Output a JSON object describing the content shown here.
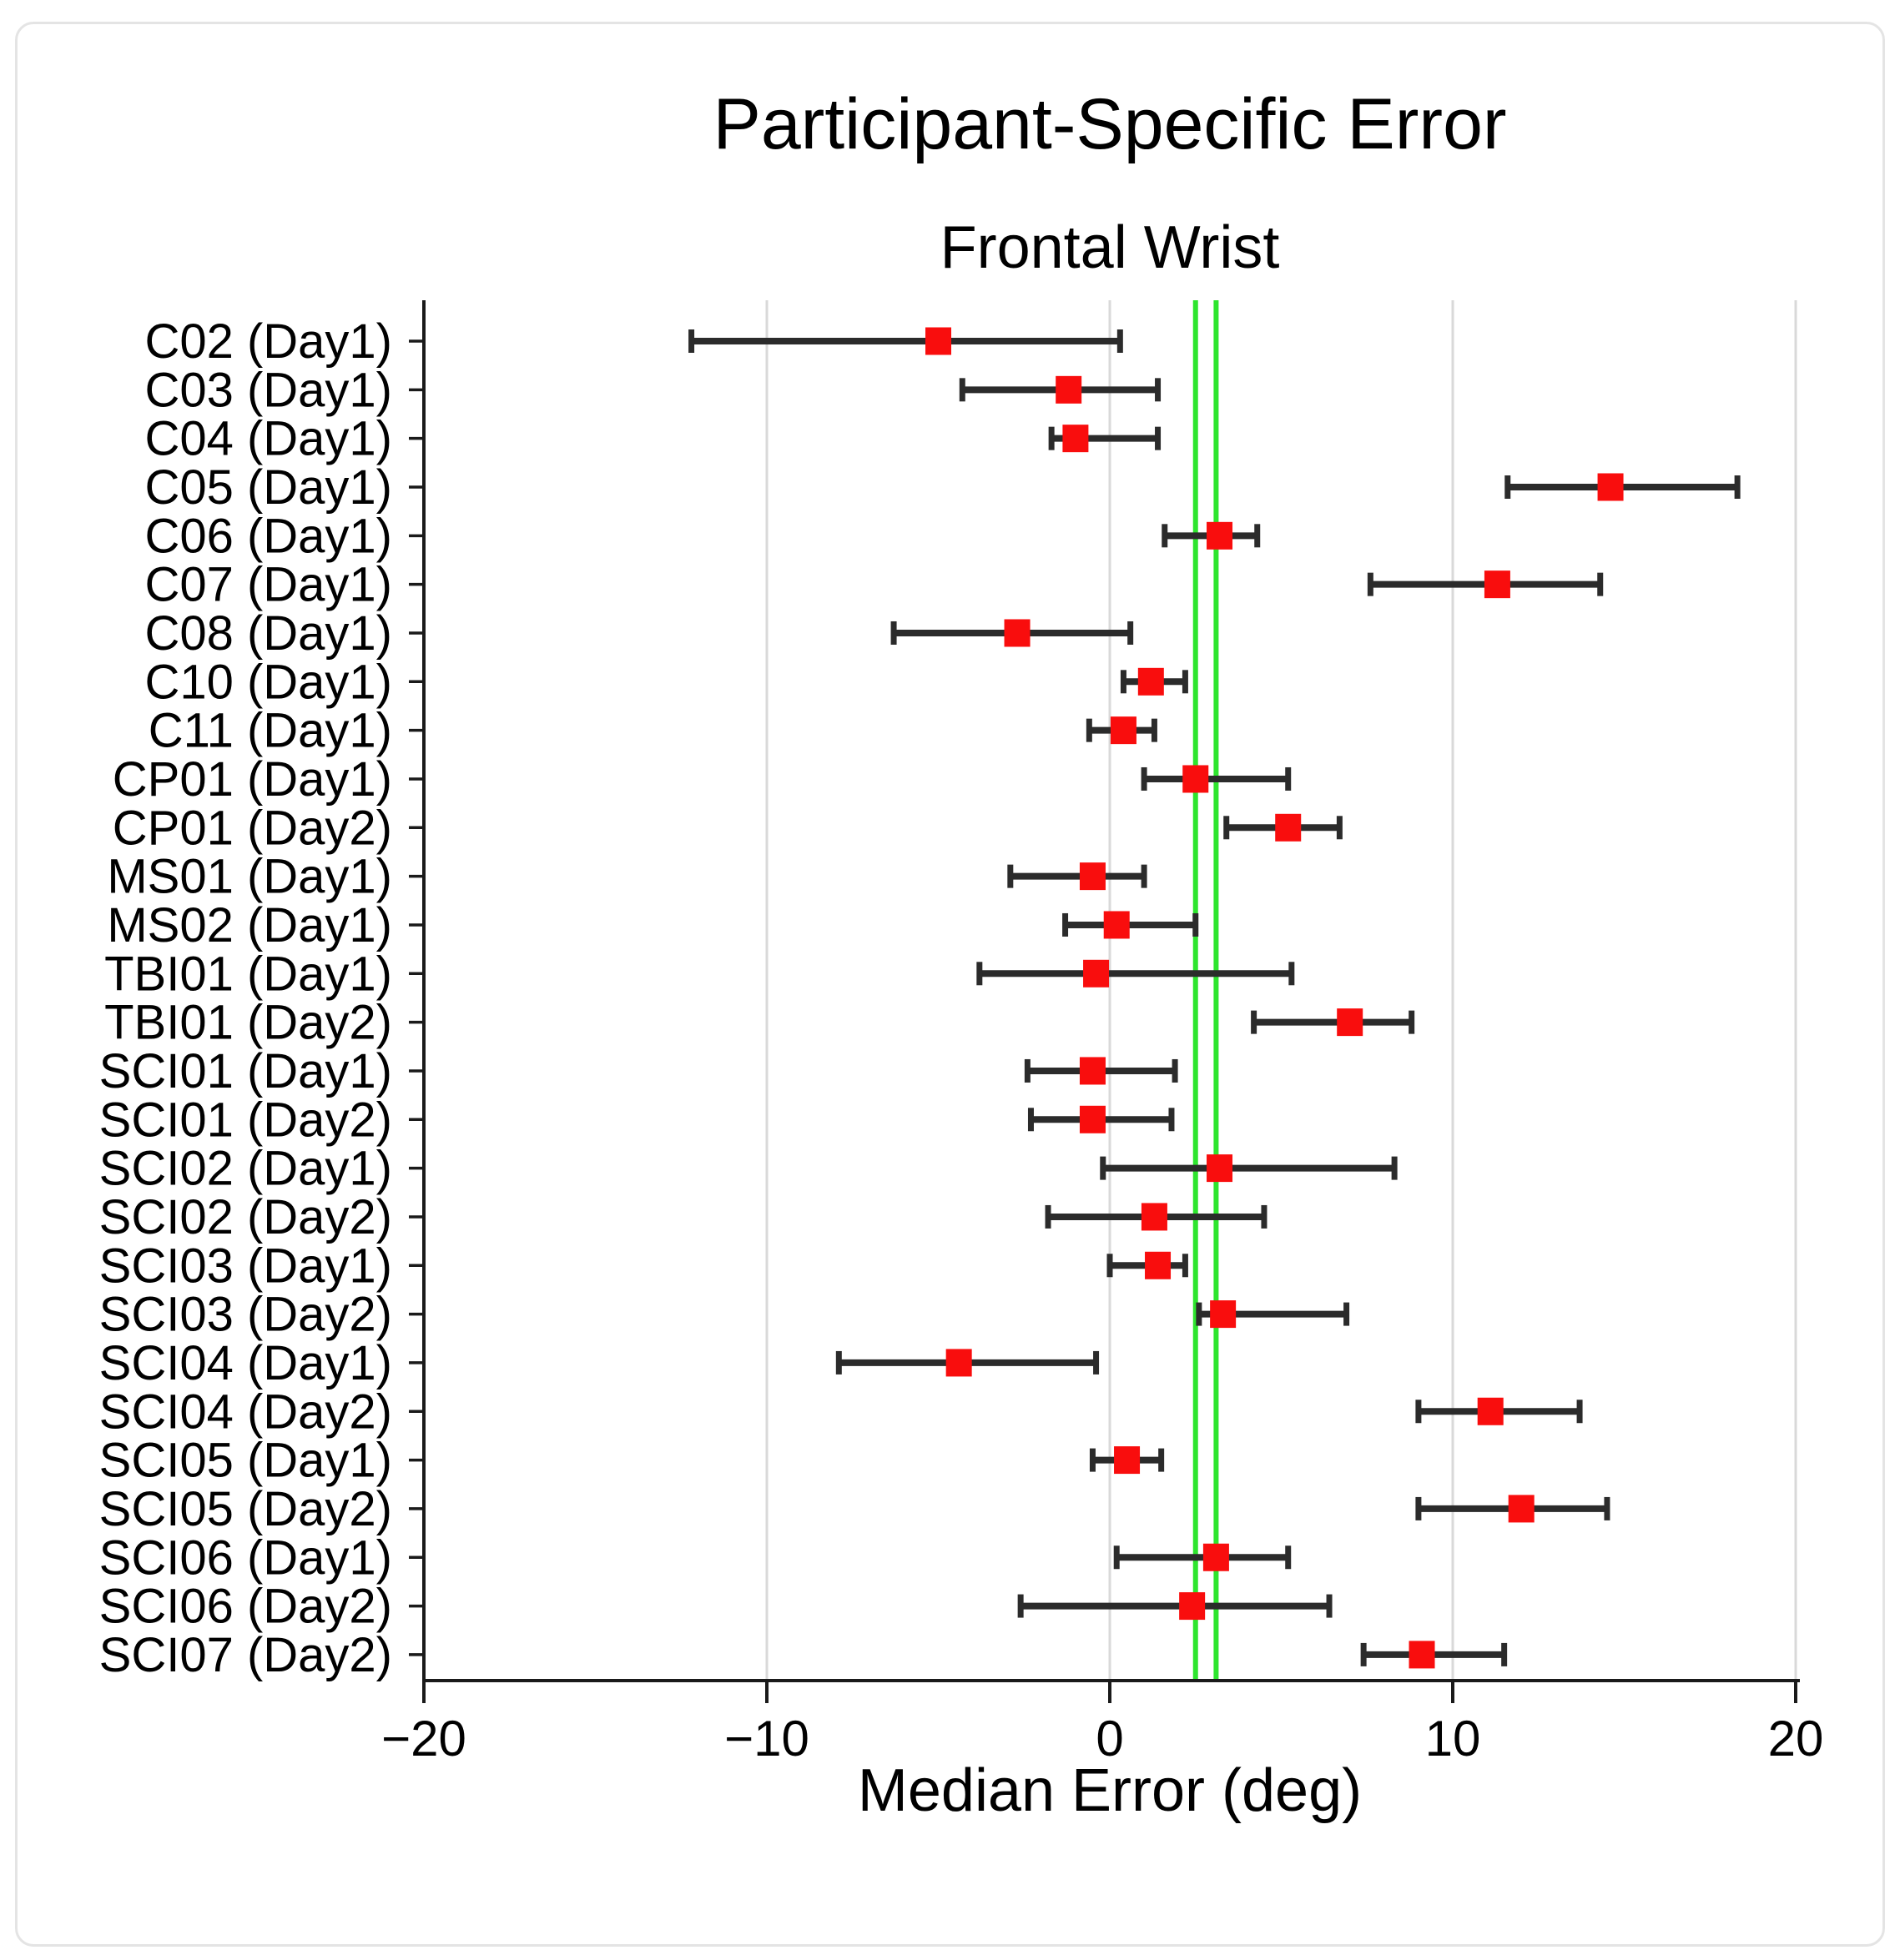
{
  "chart_data": {
    "type": "scatter",
    "subtype": "horizontal-errorbar-forest-plot",
    "title": "Participant-Specific Error",
    "subtitle": "Frontal Wrist",
    "xlabel": "Median Error (deg)",
    "ylabel": "",
    "xlim": [
      -20,
      20
    ],
    "xticks": [
      -20,
      -10,
      0,
      10,
      20
    ],
    "grid": {
      "vertical": true,
      "horizontal": false,
      "color": "#d9d9d9"
    },
    "legend": "none",
    "categories": [
      "C02 (Day1)",
      "C03 (Day1)",
      "C04 (Day1)",
      "C05 (Day1)",
      "C06 (Day1)",
      "C07 (Day1)",
      "C08 (Day1)",
      "C10 (Day1)",
      "C11 (Day1)",
      "CP01 (Day1)",
      "CP01 (Day2)",
      "MS01 (Day1)",
      "MS02 (Day1)",
      "TBI01 (Day1)",
      "TBI01 (Day2)",
      "SCI01 (Day1)",
      "SCI01 (Day2)",
      "SCI02 (Day1)",
      "SCI02 (Day2)",
      "SCI03 (Day1)",
      "SCI03 (Day2)",
      "SCI04 (Day1)",
      "SCI04 (Day2)",
      "SCI05 (Day1)",
      "SCI05 (Day2)",
      "SCI06 (Day1)",
      "SCI06 (Day2)",
      "SCI07 (Day2)"
    ],
    "series": [
      {
        "name": "Median Error",
        "marker": "square",
        "marker_color": "#f90d0d",
        "values": [
          -5.0,
          -1.2,
          -1.0,
          14.6,
          3.2,
          11.3,
          -2.7,
          1.2,
          0.4,
          2.5,
          5.2,
          -0.5,
          0.2,
          -0.4,
          7.0,
          -0.5,
          -0.5,
          3.2,
          1.3,
          1.4,
          3.3,
          -4.4,
          11.1,
          0.5,
          12.0,
          3.1,
          2.4,
          9.1
        ],
        "ci_low": [
          -12.2,
          -4.3,
          -1.7,
          11.6,
          1.6,
          7.6,
          -6.3,
          0.4,
          -0.6,
          1.0,
          3.4,
          -2.9,
          -1.3,
          -3.8,
          4.2,
          -2.4,
          -2.3,
          -0.2,
          -1.8,
          0.0,
          2.6,
          -7.9,
          9.0,
          -0.5,
          9.0,
          0.2,
          -2.6,
          7.4
        ],
        "ci_high": [
          0.3,
          1.4,
          1.4,
          18.3,
          4.3,
          14.3,
          0.6,
          2.2,
          1.3,
          5.2,
          6.7,
          1.0,
          2.5,
          5.3,
          8.8,
          1.9,
          1.8,
          8.3,
          4.5,
          2.2,
          6.9,
          -0.4,
          13.7,
          1.5,
          14.5,
          5.2,
          6.4,
          11.5
        ]
      }
    ],
    "reference_lines": [
      {
        "x": 2.5,
        "color": "#2ee52e",
        "label": ""
      },
      {
        "x": 3.1,
        "color": "#2ee52e",
        "label": ""
      }
    ],
    "colors": {
      "marker": "#f90d0d",
      "whisker": "#2b2b2b",
      "axis": "#1a1a1a",
      "gridline": "#d9d9d9",
      "reference_line": "#2ee52e",
      "background": "#ffffff",
      "frame_border": "#e4e4e4"
    }
  }
}
